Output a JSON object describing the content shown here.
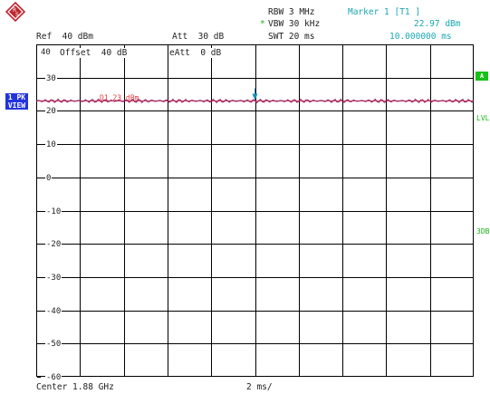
{
  "header": {
    "rbw": "RBW 3 MHz",
    "vbw_star": "*",
    "vbw": "VBW 30 kHz",
    "swt": "SWT 20 ms",
    "marker_title": "Marker 1 [T1 ]",
    "marker_level": "22.97 dBm",
    "marker_time": "10.000000 ms",
    "ref": "Ref  40 dBm",
    "att": "Att  30 dB"
  },
  "grid_info": {
    "offset": "Offset  40 dB",
    "eatt": "eAtt  0 dB",
    "d1_label": "D1  23  dBm"
  },
  "y_axis": {
    "ticks": [
      "40",
      "30",
      "20",
      "10",
      "0",
      "-10",
      "-20",
      "-30",
      "-40",
      "-50",
      "-60"
    ]
  },
  "left_panel": {
    "line1": "1 PK",
    "line2": "VIEW"
  },
  "right_panel": {
    "a_badge": "A",
    "lvl": "LVL",
    "label_3db": "3DB"
  },
  "footer": {
    "center": "Center 1.88 GHz",
    "span": "2 ms/"
  },
  "chart_data": {
    "type": "line",
    "title": "",
    "xlabel": "",
    "ylabel": "",
    "ylim": [
      -60,
      40
    ],
    "x_unit": "ms",
    "x": [
      0,
      2,
      4,
      6,
      8,
      10,
      12,
      14,
      16,
      18,
      20
    ],
    "series": [
      {
        "name": "",
        "values": [
          23,
          23,
          23,
          23,
          23,
          22.97,
          23,
          23,
          23,
          23,
          23
        ]
      }
    ],
    "display_line_d1": 23,
    "marker": {
      "x": 10,
      "y": 22.97
    },
    "grid": true,
    "colors": {
      "trace": "#8b1a6b",
      "display_line": "#e23b3b",
      "marker": "#1a8fb8"
    }
  }
}
